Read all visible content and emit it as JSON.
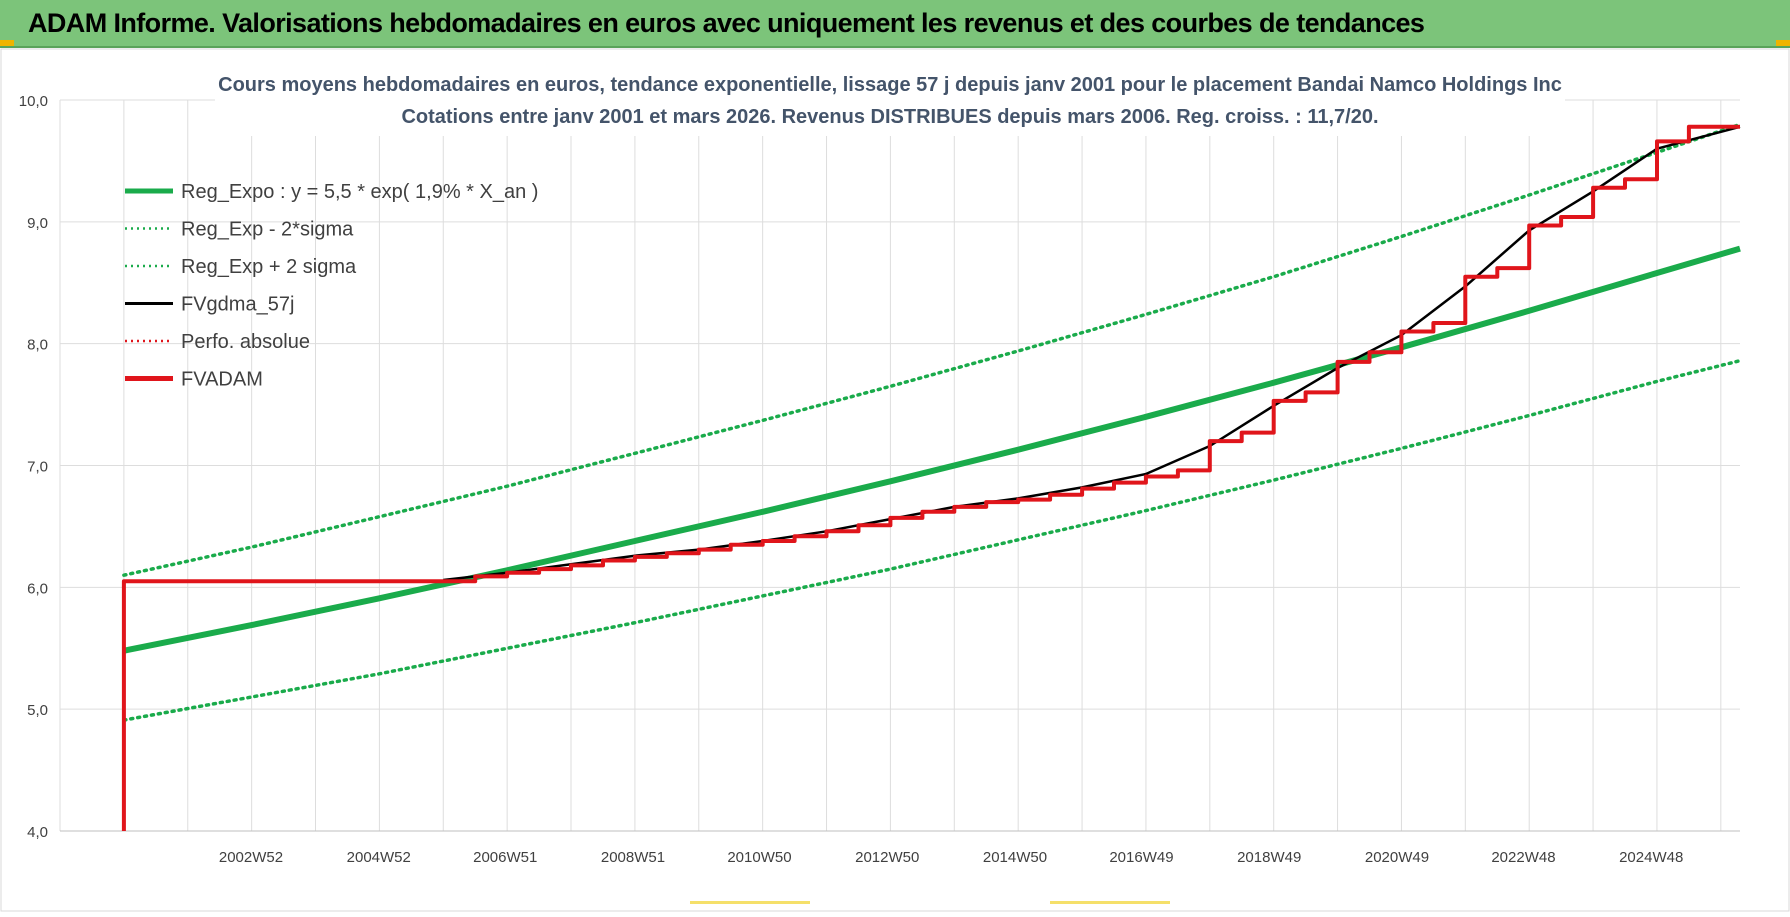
{
  "banner": {
    "title": "ADAM Informe. Valorisations hebdomadaires en euros avec uniquement les revenus et des courbes de tendances"
  },
  "colors": {
    "banner_bg": "#7cc47a",
    "trend_green": "#1aab4b",
    "fvadam_red": "#e0151b",
    "fvgdma_black": "#000000",
    "grid": "#dddddd"
  },
  "chart_data": {
    "type": "line",
    "title_line1": "Cours moyens hebdomadaires en euros, tendance exponentielle, lissage 57 j depuis janv 2001 pour le placement Bandai Namco Holdings Inc",
    "title_line2": "Cotations entre janv 2001 et mars 2026. Revenus DISTRIBUES depuis mars 2006. Reg. croiss. : 11,7/20.",
    "ylim": [
      4.0,
      10.0
    ],
    "y_ticks": [
      "4,0",
      "5,0",
      "6,0",
      "7,0",
      "8,0",
      "9,0",
      "10,0"
    ],
    "x_ticks": [
      "2002W52",
      "2004W52",
      "2006W51",
      "2008W51",
      "2010W50",
      "2012W50",
      "2014W50",
      "2016W49",
      "2018W49",
      "2020W49",
      "2022W48",
      "2024W48"
    ],
    "x_tick_years": [
      2002.99,
      2004.99,
      2006.97,
      2008.97,
      2010.95,
      2012.95,
      2014.95,
      2016.93,
      2018.93,
      2020.93,
      2022.91,
      2024.91
    ],
    "xlim": [
      2000.0,
      2026.3
    ],
    "grid": true,
    "legend_position": "top-left",
    "legend": [
      {
        "label": "Reg_Expo : y = 5,5 * exp( 1,9% *  X_an )",
        "style": "solid-thick",
        "color": "#1aab4b"
      },
      {
        "label": "Reg_Exp - 2*sigma",
        "style": "dotted",
        "color": "#1aab4b"
      },
      {
        "label": "Reg_Exp + 2 sigma",
        "style": "dotted",
        "color": "#1aab4b"
      },
      {
        "label": "FVgdma_57j",
        "style": "solid",
        "color": "#000000"
      },
      {
        "label": "Perfo. absolue",
        "style": "dotted",
        "color": "#e0151b"
      },
      {
        "label": "FVADAM",
        "style": "solid-thick",
        "color": "#e0151b"
      }
    ],
    "series": [
      {
        "name": "Reg_Expo : y = 5,5 * exp( 1,9% *  X_an )",
        "x": [
          2001.0,
          2003.0,
          2005.0,
          2007.0,
          2009.0,
          2011.0,
          2013.0,
          2015.0,
          2017.0,
          2019.0,
          2021.0,
          2023.0,
          2025.0,
          2026.3
        ],
        "y": [
          5.48,
          5.69,
          5.91,
          6.14,
          6.38,
          6.62,
          6.87,
          7.13,
          7.4,
          7.68,
          7.97,
          8.27,
          8.58,
          8.78
        ]
      },
      {
        "name": "Reg_Exp - 2*sigma",
        "x": [
          2001.0,
          2003.0,
          2005.0,
          2007.0,
          2009.0,
          2011.0,
          2013.0,
          2015.0,
          2017.0,
          2019.0,
          2021.0,
          2023.0,
          2025.0,
          2026.3
        ],
        "y": [
          4.91,
          5.1,
          5.29,
          5.5,
          5.71,
          5.93,
          6.15,
          6.39,
          6.63,
          6.88,
          7.14,
          7.41,
          7.69,
          7.86
        ]
      },
      {
        "name": "Reg_Exp + 2 sigma",
        "x": [
          2001.0,
          2003.0,
          2005.0,
          2007.0,
          2009.0,
          2011.0,
          2013.0,
          2015.0,
          2017.0,
          2019.0,
          2021.0,
          2023.0,
          2025.0,
          2026.3
        ],
        "y": [
          6.1,
          6.33,
          6.58,
          6.83,
          7.1,
          7.37,
          7.65,
          7.94,
          8.24,
          8.55,
          8.88,
          9.22,
          9.57,
          9.8
        ]
      },
      {
        "name": "FVgdma_57j",
        "x": [
          2006.0,
          2007.0,
          2008.0,
          2009.0,
          2010.0,
          2011.0,
          2012.0,
          2013.0,
          2014.0,
          2015.0,
          2016.0,
          2017.0,
          2018.0,
          2019.0,
          2020.0,
          2021.0,
          2022.0,
          2023.0,
          2024.0,
          2025.0,
          2026.3
        ],
        "y": [
          6.06,
          6.12,
          6.19,
          6.26,
          6.31,
          6.38,
          6.46,
          6.56,
          6.66,
          6.73,
          6.82,
          6.93,
          7.16,
          7.49,
          7.8,
          8.07,
          8.47,
          8.93,
          9.25,
          9.6,
          9.78
        ]
      },
      {
        "name": "FVADAM",
        "x": [
          2001.0,
          2001.0,
          2006.0,
          2006.5,
          2007.0,
          2007.5,
          2008.0,
          2008.5,
          2009.0,
          2009.5,
          2010.0,
          2010.5,
          2011.0,
          2011.5,
          2012.0,
          2012.5,
          2013.0,
          2013.5,
          2014.0,
          2014.5,
          2015.0,
          2015.5,
          2016.0,
          2016.5,
          2017.0,
          2017.5,
          2018.0,
          2018.5,
          2019.0,
          2019.5,
          2020.0,
          2020.5,
          2021.0,
          2021.5,
          2022.0,
          2022.5,
          2023.0,
          2023.5,
          2024.0,
          2024.5,
          2025.0,
          2025.5,
          2026.3
        ],
        "y": [
          4.0,
          6.05,
          6.05,
          6.09,
          6.12,
          6.15,
          6.18,
          6.22,
          6.25,
          6.28,
          6.31,
          6.35,
          6.38,
          6.42,
          6.46,
          6.51,
          6.57,
          6.62,
          6.66,
          6.7,
          6.72,
          6.76,
          6.81,
          6.86,
          6.91,
          6.96,
          7.2,
          7.27,
          7.53,
          7.6,
          7.85,
          7.93,
          8.1,
          8.17,
          8.55,
          8.62,
          8.97,
          9.04,
          9.28,
          9.35,
          9.66,
          9.78,
          9.78
        ],
        "step": true
      }
    ]
  }
}
